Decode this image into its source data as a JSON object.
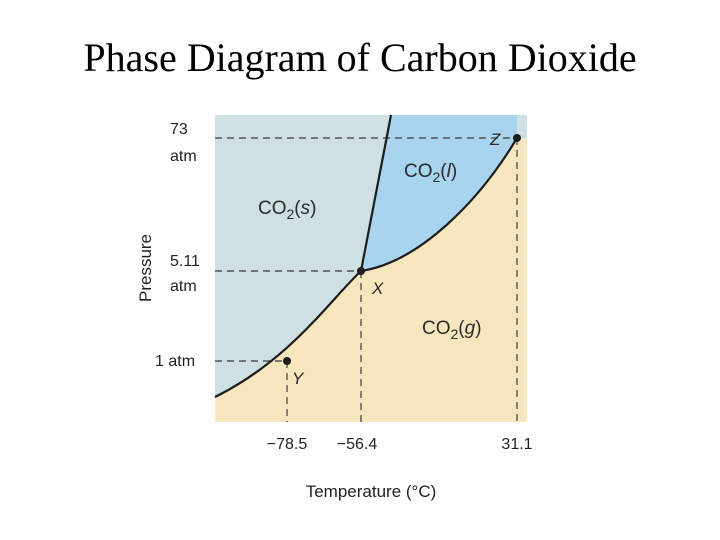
{
  "title": "Phase Diagram of Carbon Dioxide",
  "axes": {
    "x_label": "Temperature (°C)",
    "y_label": "Pressure",
    "y_ticks": [
      {
        "line1": "73",
        "line2": "atm"
      },
      {
        "line1": "5.11",
        "line2": "atm"
      },
      {
        "line1": "1 atm",
        "line2": ""
      }
    ],
    "x_ticks": [
      "−78.5",
      "−56.4",
      "31.1"
    ]
  },
  "regions": {
    "solid": {
      "prefix": "CO",
      "sub": "2",
      "state": "s"
    },
    "liquid": {
      "prefix": "CO",
      "sub": "2",
      "state": "l"
    },
    "gas": {
      "prefix": "CO",
      "sub": "2",
      "state": "g"
    }
  },
  "points": {
    "triple": {
      "label": "X",
      "temperature": "−56.4",
      "pressure": "5.11 atm"
    },
    "sublimation_1atm": {
      "label": "Y",
      "temperature": "−78.5",
      "pressure": "1 atm"
    },
    "critical": {
      "label": "Z",
      "temperature": "31.1",
      "pressure": "73 atm"
    }
  },
  "colors": {
    "solid_region": "#cfe0e4",
    "liquid_region": "#a8d4ef",
    "gas_region": "#f8e6bf",
    "curve": "#1c1c1c",
    "dashed": "#555555"
  }
}
